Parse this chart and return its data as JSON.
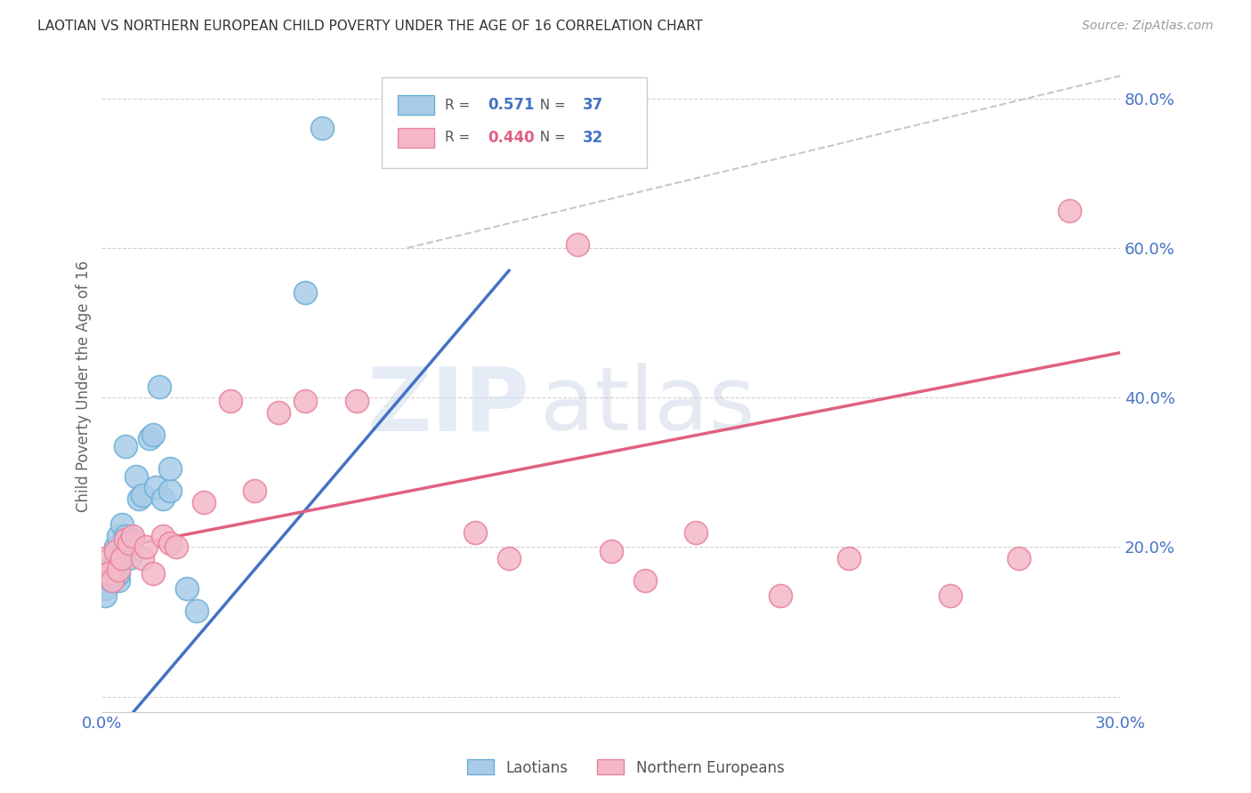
{
  "title": "LAOTIAN VS NORTHERN EUROPEAN CHILD POVERTY UNDER THE AGE OF 16 CORRELATION CHART",
  "source": "Source: ZipAtlas.com",
  "ylabel": "Child Poverty Under the Age of 16",
  "legend_label1": "Laotians",
  "legend_label2": "Northern Europeans",
  "r1": "0.571",
  "n1": "37",
  "r2": "0.440",
  "n2": "32",
  "xlim": [
    0.0,
    0.3
  ],
  "ylim": [
    -0.02,
    0.85
  ],
  "yticks": [
    0.0,
    0.2,
    0.4,
    0.6,
    0.8
  ],
  "ytick_labels": [
    "",
    "20.0%",
    "40.0%",
    "60.0%",
    "80.0%"
  ],
  "xticks": [
    0.0,
    0.05,
    0.1,
    0.15,
    0.2,
    0.25,
    0.3
  ],
  "xtick_labels": [
    "0.0%",
    "",
    "",
    "",
    "",
    "",
    "30.0%"
  ],
  "color_blue_fill": "#a8cce8",
  "color_blue_edge": "#6aaed6",
  "color_blue_line": "#4472c4",
  "color_pink_fill": "#f4b8c8",
  "color_pink_edge": "#e8829a",
  "color_pink_line": "#e06080",
  "color_ref_line": "#b8b8c8",
  "color_axis_text": "#4472c4",
  "watermark_zip": "ZIP",
  "watermark_atlas": "atlas",
  "blue_line_x": [
    0.0,
    0.12
  ],
  "blue_line_y": [
    -0.07,
    0.57
  ],
  "pink_line_x": [
    0.0,
    0.3
  ],
  "pink_line_y": [
    0.195,
    0.46
  ],
  "ref_line_x": [
    0.09,
    0.3
  ],
  "ref_line_y": [
    0.6,
    0.83
  ],
  "laotian_x": [
    0.001,
    0.001,
    0.002,
    0.002,
    0.003,
    0.003,
    0.003,
    0.004,
    0.004,
    0.004,
    0.004,
    0.005,
    0.005,
    0.005,
    0.005,
    0.005,
    0.006,
    0.006,
    0.007,
    0.007,
    0.007,
    0.008,
    0.009,
    0.01,
    0.011,
    0.012,
    0.014,
    0.015,
    0.016,
    0.017,
    0.018,
    0.02,
    0.02,
    0.025,
    0.028,
    0.06,
    0.065
  ],
  "laotian_y": [
    0.145,
    0.135,
    0.16,
    0.17,
    0.155,
    0.17,
    0.175,
    0.16,
    0.175,
    0.185,
    0.2,
    0.155,
    0.165,
    0.18,
    0.195,
    0.215,
    0.19,
    0.23,
    0.205,
    0.215,
    0.335,
    0.185,
    0.21,
    0.295,
    0.265,
    0.27,
    0.345,
    0.35,
    0.28,
    0.415,
    0.265,
    0.275,
    0.305,
    0.145,
    0.115,
    0.54,
    0.76
  ],
  "northern_x": [
    0.001,
    0.002,
    0.003,
    0.004,
    0.005,
    0.006,
    0.007,
    0.008,
    0.009,
    0.012,
    0.013,
    0.015,
    0.018,
    0.02,
    0.022,
    0.03,
    0.038,
    0.045,
    0.052,
    0.06,
    0.075,
    0.11,
    0.12,
    0.14,
    0.15,
    0.16,
    0.175,
    0.2,
    0.22,
    0.25,
    0.27,
    0.285
  ],
  "northern_y": [
    0.185,
    0.165,
    0.155,
    0.195,
    0.17,
    0.185,
    0.21,
    0.205,
    0.215,
    0.185,
    0.2,
    0.165,
    0.215,
    0.205,
    0.2,
    0.26,
    0.395,
    0.275,
    0.38,
    0.395,
    0.395,
    0.22,
    0.185,
    0.605,
    0.195,
    0.155,
    0.22,
    0.135,
    0.185,
    0.135,
    0.185,
    0.65
  ]
}
